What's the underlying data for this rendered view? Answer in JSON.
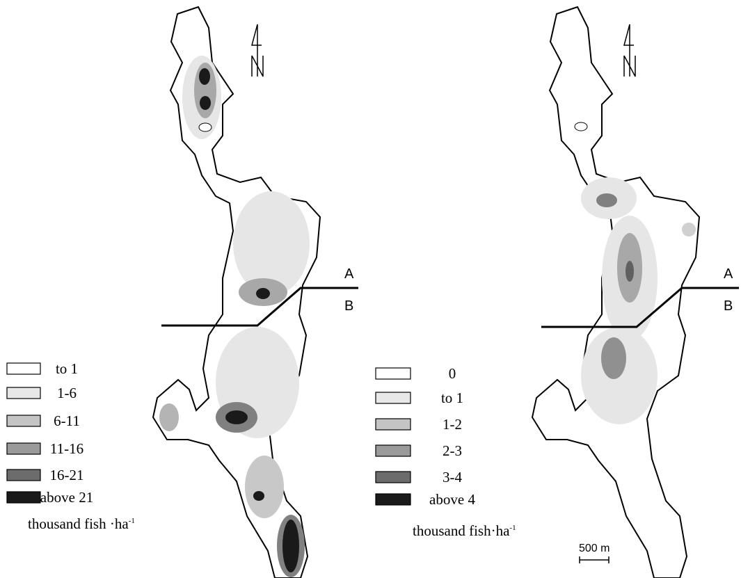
{
  "maps": [
    {
      "legend": {
        "items": [
          "to 1",
          "1-6",
          "6-11",
          "11-16",
          "16-21",
          "above 21"
        ],
        "unit": "thousand fish ·ha",
        "unit_sup": "-1"
      },
      "section_labels": [
        "A",
        "B"
      ]
    },
    {
      "legend": {
        "items": [
          "0",
          "to 1",
          "1-2",
          "2-3",
          "3-4",
          "above 4"
        ],
        "unit": "thousand fish·ha",
        "unit_sup": "-1"
      },
      "section_labels": [
        "A",
        "B"
      ]
    }
  ],
  "scale_bar": "500 m"
}
